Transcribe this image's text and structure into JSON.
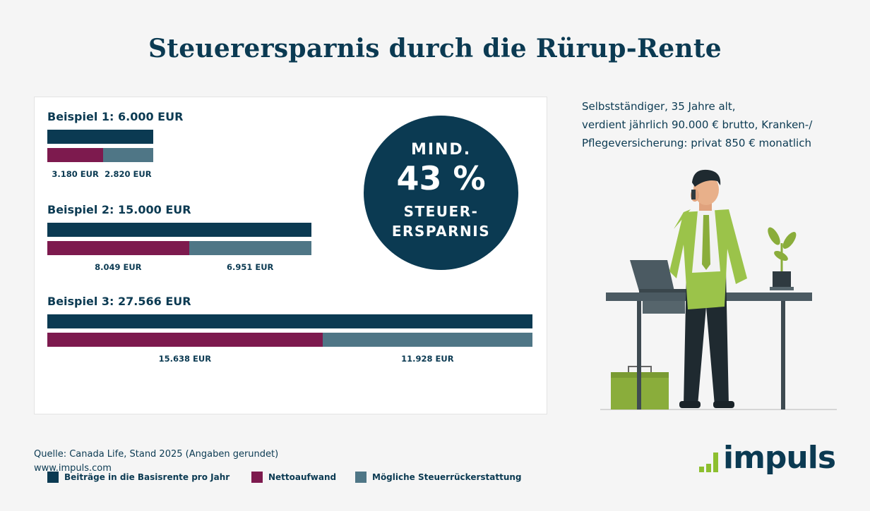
{
  "title": "Steuerersparnis durch die Rürup-Rente",
  "chart_data": {
    "type": "bar",
    "examples": [
      {
        "title": "Beispiel 1: 6.000 EUR",
        "total": 6000,
        "netto": 3180,
        "erstattung": 2820,
        "netto_label": "3.180 EUR",
        "erstattung_label": "2.820 EUR"
      },
      {
        "title": "Beispiel 2: 15.000 EUR",
        "total": 15000,
        "netto": 8049,
        "erstattung": 6951,
        "netto_label": "8.049 EUR",
        "erstattung_label": "6.951 EUR"
      },
      {
        "title": "Beispiel 3: 27.566 EUR",
        "total": 27566,
        "netto": 15638,
        "erstattung": 11928,
        "netto_label": "15.638 EUR",
        "erstattung_label": "11.928 EUR"
      }
    ],
    "max_value": 27566,
    "legend": [
      {
        "label": "Beiträge in die Basisrente pro Jahr",
        "color": "#0b3a52"
      },
      {
        "label": "Nettoaufwand",
        "color": "#7d1a4e"
      },
      {
        "label": "Mögliche Steuerrückerstattung",
        "color": "#4f7686"
      }
    ]
  },
  "badge": {
    "line1": "MIND.",
    "line2": "43 %",
    "line3a": "STEUER-",
    "line3b": "ERSPARNIS"
  },
  "description": {
    "line1": "Selbstständiger, 35 Jahre alt,",
    "line2": "verdient jährlich 90.000 € brutto, Kranken-/",
    "line3": "Pflegeversicherung: privat 850 € monatlich"
  },
  "source": {
    "line1": "Quelle: Canada Life, Stand 2025 (Angaben gerundet)",
    "line2": "www.impuls.com"
  },
  "logo": {
    "text": "impuls",
    "accent": "#8dbf2f"
  }
}
